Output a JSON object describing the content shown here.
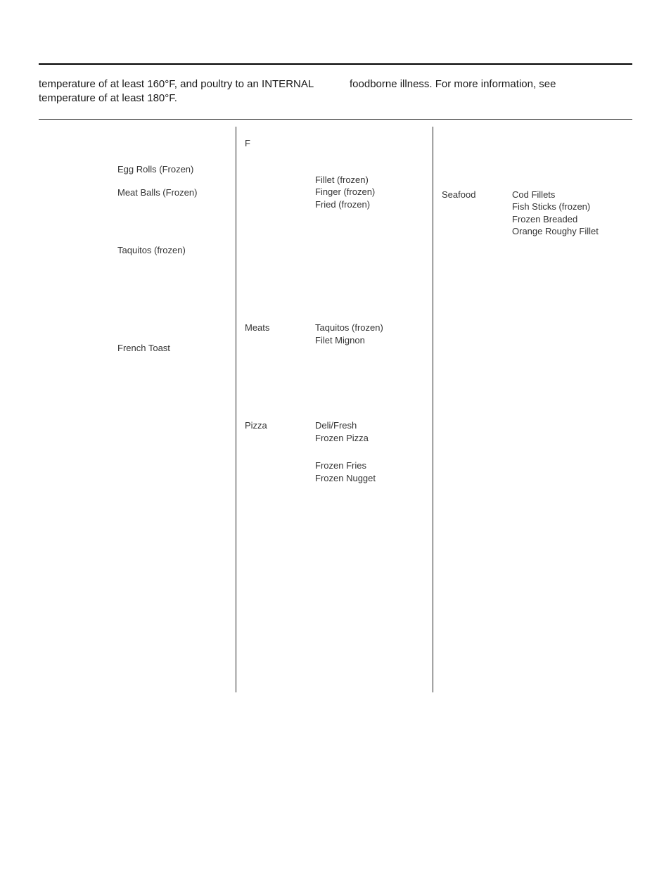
{
  "intro": {
    "left": "temperature of at least 160°F, and poultry to an INTERNAL temperature of at least 180°F.",
    "right": "foodborne illness. For more information, see"
  },
  "letters": {
    "c1": "",
    "c2": "F",
    "c3": ""
  },
  "col1": [
    {
      "cat": "",
      "items": [
        "Egg Rolls (Frozen)"
      ],
      "topGap": 36
    },
    {
      "cat": "",
      "items": [
        "Meat Balls (Frozen)"
      ],
      "topGap": 6
    },
    {
      "cat": "",
      "items": [
        "Taquitos (frozen)"
      ],
      "topGap": 64
    },
    {
      "cat": "",
      "items": [
        "French Toast"
      ],
      "topGap": 122
    }
  ],
  "col2": [
    {
      "cat": "",
      "items": [
        "Fillet (frozen)",
        "Finger (frozen)",
        "Fried (frozen)"
      ],
      "topGap": 36
    },
    {
      "cat": "Meats",
      "items": [
        "Taquitos (frozen)",
        "Filet Mignon"
      ],
      "topGap": 158
    },
    {
      "cat": "Pizza",
      "items": [
        "Deli/Fresh",
        "Frozen Pizza"
      ],
      "topGap": 104
    },
    {
      "cat": "",
      "items": [
        "Frozen Fries",
        "Frozen Nugget"
      ],
      "topGap": 22
    }
  ],
  "col3": [
    {
      "cat": "Seafood",
      "items": [
        "Cod Fillets",
        "Fish Sticks (frozen)",
        "Frozen Breaded",
        "Orange Roughy Fillet"
      ],
      "topGap": 72
    }
  ]
}
